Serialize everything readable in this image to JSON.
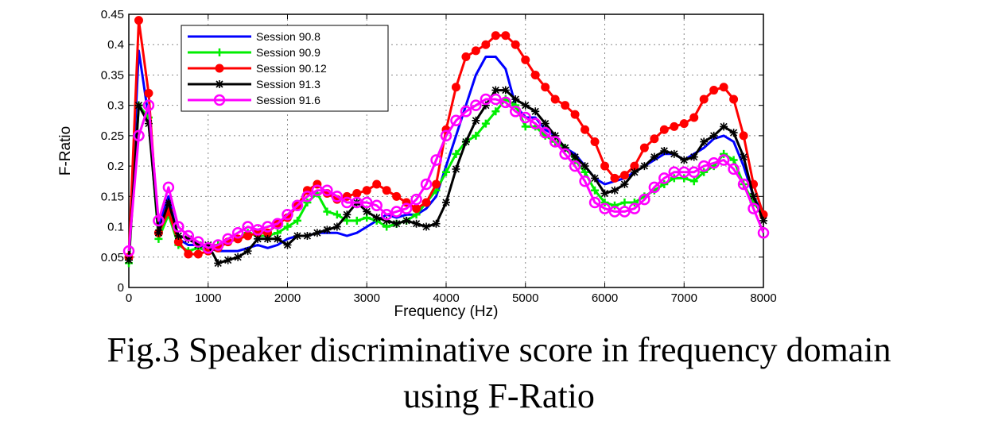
{
  "caption": {
    "line1": "Fig.3 Speaker discriminative score in frequency domain",
    "line2": "using F-Ratio"
  },
  "chart_data": {
    "type": "line",
    "xlabel": "Frequency (Hz)",
    "ylabel": "F-Ratio",
    "xlim": [
      0,
      8000
    ],
    "ylim": [
      0,
      0.45
    ],
    "xticks": [
      0,
      1000,
      2000,
      3000,
      4000,
      5000,
      6000,
      7000,
      8000
    ],
    "yticks": [
      0,
      0.05,
      0.1,
      0.15,
      0.2,
      0.25,
      0.3,
      0.35,
      0.4,
      0.45
    ],
    "xtick_labels": [
      "0",
      "1000",
      "2000",
      "3000",
      "4000",
      "5000",
      "6000",
      "7000",
      "8000"
    ],
    "ytick_labels": [
      "0",
      "0.05",
      "0.1",
      "0.15",
      "0.2",
      "0.25",
      "0.3",
      "0.35",
      "0.4",
      "0.45"
    ],
    "grid": true,
    "legend_position": "top-left",
    "x": [
      0,
      125,
      250,
      375,
      500,
      625,
      750,
      875,
      1000,
      1125,
      1250,
      1375,
      1500,
      1625,
      1750,
      1875,
      2000,
      2125,
      2250,
      2375,
      2500,
      2625,
      2750,
      2875,
      3000,
      3125,
      3250,
      3375,
      3500,
      3625,
      3750,
      3875,
      4000,
      4125,
      4250,
      4375,
      4500,
      4625,
      4750,
      4875,
      5000,
      5125,
      5250,
      5375,
      5500,
      5625,
      5750,
      5875,
      6000,
      6125,
      6250,
      6375,
      6500,
      6625,
      6750,
      6875,
      7000,
      7125,
      7250,
      7375,
      7500,
      7625,
      7750,
      7875,
      8000
    ],
    "series": [
      {
        "name": "Session 90.8",
        "color": "#0000ff",
        "marker": "none",
        "values": [
          0.05,
          0.39,
          0.28,
          0.1,
          0.15,
          0.08,
          0.07,
          0.07,
          0.065,
          0.06,
          0.06,
          0.06,
          0.065,
          0.07,
          0.065,
          0.07,
          0.08,
          0.085,
          0.085,
          0.09,
          0.09,
          0.09,
          0.085,
          0.09,
          0.1,
          0.11,
          0.12,
          0.115,
          0.12,
          0.12,
          0.13,
          0.15,
          0.2,
          0.25,
          0.3,
          0.35,
          0.38,
          0.38,
          0.36,
          0.3,
          0.28,
          0.28,
          0.26,
          0.25,
          0.23,
          0.22,
          0.2,
          0.18,
          0.17,
          0.175,
          0.18,
          0.19,
          0.2,
          0.21,
          0.22,
          0.22,
          0.21,
          0.22,
          0.23,
          0.245,
          0.25,
          0.24,
          0.2,
          0.15,
          0.12
        ]
      },
      {
        "name": "Session 90.9",
        "color": "#00ee00",
        "marker": "plus",
        "values": [
          0.04,
          0.3,
          0.28,
          0.08,
          0.12,
          0.07,
          0.06,
          0.065,
          0.06,
          0.07,
          0.075,
          0.08,
          0.09,
          0.085,
          0.085,
          0.09,
          0.1,
          0.11,
          0.14,
          0.155,
          0.125,
          0.12,
          0.11,
          0.11,
          0.115,
          0.11,
          0.1,
          0.105,
          0.11,
          0.12,
          0.14,
          0.16,
          0.19,
          0.22,
          0.24,
          0.25,
          0.27,
          0.29,
          0.31,
          0.3,
          0.265,
          0.265,
          0.25,
          0.24,
          0.23,
          0.21,
          0.19,
          0.16,
          0.14,
          0.135,
          0.14,
          0.14,
          0.15,
          0.16,
          0.17,
          0.18,
          0.18,
          0.175,
          0.19,
          0.2,
          0.22,
          0.21,
          0.17,
          0.14,
          0.12
        ]
      },
      {
        "name": "Session 90.12",
        "color": "#ff0000",
        "marker": "circle-filled",
        "values": [
          0.05,
          0.44,
          0.32,
          0.09,
          0.125,
          0.075,
          0.055,
          0.055,
          0.06,
          0.065,
          0.075,
          0.08,
          0.085,
          0.09,
          0.09,
          0.105,
          0.115,
          0.135,
          0.16,
          0.17,
          0.155,
          0.145,
          0.15,
          0.155,
          0.16,
          0.17,
          0.16,
          0.15,
          0.14,
          0.13,
          0.14,
          0.17,
          0.26,
          0.33,
          0.38,
          0.39,
          0.4,
          0.415,
          0.415,
          0.4,
          0.375,
          0.35,
          0.33,
          0.31,
          0.3,
          0.285,
          0.26,
          0.24,
          0.2,
          0.18,
          0.185,
          0.2,
          0.23,
          0.245,
          0.26,
          0.265,
          0.27,
          0.28,
          0.31,
          0.325,
          0.33,
          0.31,
          0.25,
          0.17,
          0.12
        ]
      },
      {
        "name": "Session 91.3",
        "color": "#000000",
        "marker": "star",
        "values": [
          0.045,
          0.3,
          0.27,
          0.09,
          0.14,
          0.085,
          0.08,
          0.07,
          0.07,
          0.04,
          0.045,
          0.05,
          0.06,
          0.08,
          0.08,
          0.08,
          0.07,
          0.085,
          0.085,
          0.09,
          0.095,
          0.1,
          0.12,
          0.14,
          0.125,
          0.115,
          0.11,
          0.105,
          0.11,
          0.105,
          0.1,
          0.105,
          0.14,
          0.195,
          0.24,
          0.275,
          0.3,
          0.325,
          0.325,
          0.31,
          0.3,
          0.29,
          0.27,
          0.25,
          0.23,
          0.215,
          0.2,
          0.18,
          0.155,
          0.16,
          0.17,
          0.19,
          0.2,
          0.215,
          0.225,
          0.22,
          0.21,
          0.215,
          0.24,
          0.25,
          0.265,
          0.255,
          0.215,
          0.15,
          0.11
        ]
      },
      {
        "name": "Session 91.6",
        "color": "#ff00ff",
        "marker": "circle-open",
        "values": [
          0.06,
          0.25,
          0.3,
          0.11,
          0.165,
          0.1,
          0.085,
          0.075,
          0.065,
          0.07,
          0.08,
          0.09,
          0.1,
          0.095,
          0.1,
          0.105,
          0.12,
          0.135,
          0.15,
          0.16,
          0.16,
          0.15,
          0.14,
          0.14,
          0.14,
          0.135,
          0.12,
          0.125,
          0.13,
          0.145,
          0.17,
          0.21,
          0.25,
          0.275,
          0.29,
          0.3,
          0.31,
          0.31,
          0.305,
          0.29,
          0.28,
          0.27,
          0.255,
          0.24,
          0.22,
          0.2,
          0.175,
          0.14,
          0.13,
          0.125,
          0.125,
          0.13,
          0.145,
          0.165,
          0.18,
          0.19,
          0.19,
          0.19,
          0.2,
          0.205,
          0.21,
          0.195,
          0.17,
          0.13,
          0.09
        ]
      }
    ]
  }
}
